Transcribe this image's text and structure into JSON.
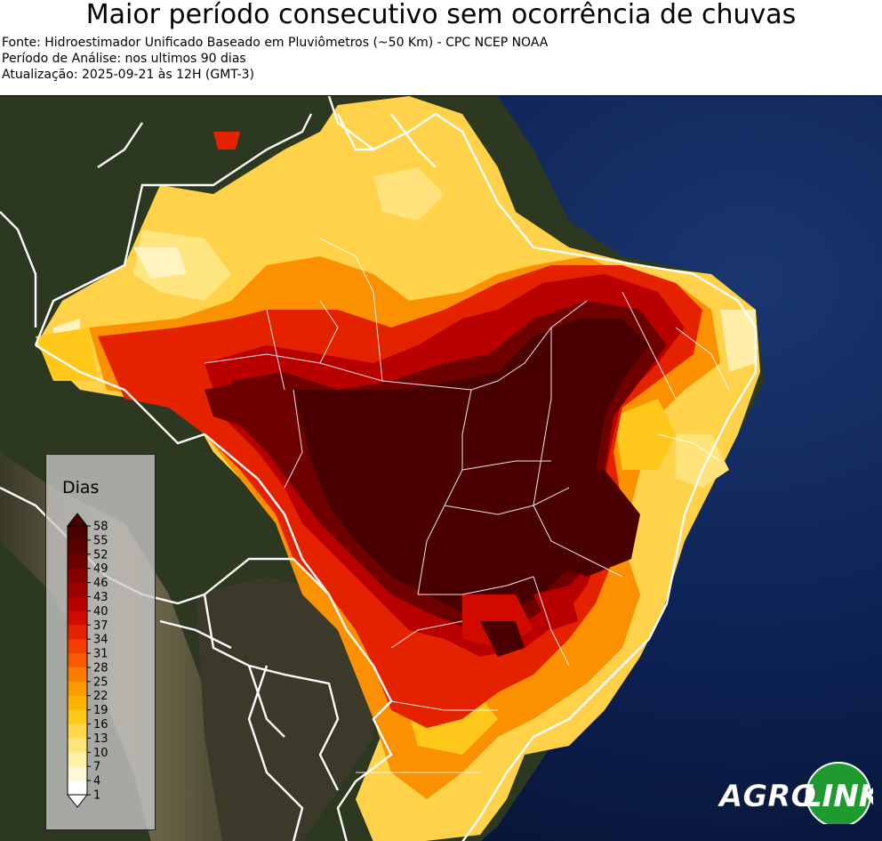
{
  "title": "Maior período consecutivo sem ocorrência de chuvas",
  "meta": {
    "source": "Fonte: Hidroestimador Unificado Baseado em Pluviômetros (~50 Km) - CPC NCEP NOAA",
    "period": "Período de Análise: nos ultimos 90 dias",
    "update": "Atualização: 2025-09-21 às 12H (GMT-3)"
  },
  "legend": {
    "title": "Dias",
    "ticks": [
      "58",
      "55",
      "52",
      "49",
      "46",
      "43",
      "40",
      "37",
      "34",
      "31",
      "28",
      "25",
      "22",
      "19",
      "16",
      "13",
      "10",
      "7",
      "4",
      "1"
    ],
    "colors": [
      "#4a0000",
      "#5a0000",
      "#6e0000",
      "#850000",
      "#9e0000",
      "#b80000",
      "#d10a00",
      "#e52200",
      "#f23c00",
      "#f85a00",
      "#fb7a00",
      "#fd9800",
      "#feb300",
      "#ffc81a",
      "#ffd84a",
      "#ffe47a",
      "#fff0a8",
      "#fff8d6",
      "#ffffff"
    ]
  },
  "map": {
    "colors": {
      "ocean": "#0d2350",
      "ocean_deep": "#071634",
      "land": "#2f3a22",
      "land_dry": "#6b5a3e",
      "border": "#ffffff"
    }
  },
  "logo": {
    "text_a": "AGRO",
    "text_b": "LINK",
    "green": "#1e9a2e"
  }
}
